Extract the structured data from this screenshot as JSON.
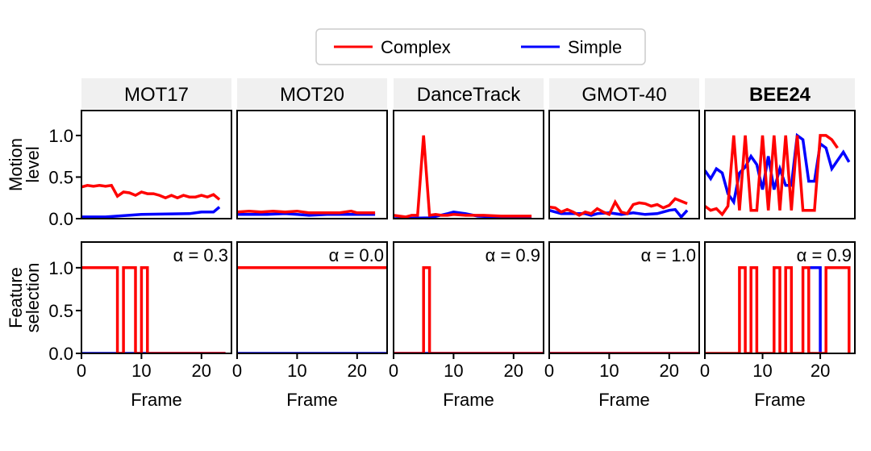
{
  "chart_data": {
    "type": "line",
    "legend": {
      "placement": "top-center",
      "entries": [
        {
          "label": "Complex",
          "color": "#ff0000"
        },
        {
          "label": "Simple",
          "color": "#0000ff"
        }
      ]
    },
    "panel_titles": [
      "MOT17",
      "MOT20",
      "DanceTrack",
      "GMOT-40",
      "BEE24"
    ],
    "bold_title_index": 4,
    "row_ylabels": [
      [
        "Motion",
        "level"
      ],
      [
        "Feature",
        "selection"
      ]
    ],
    "xlabel": "Frame",
    "x_ticks": [
      0,
      10,
      20
    ],
    "y_ticks": [
      0.0,
      0.5,
      1.0
    ],
    "y_tick_labels": [
      "0.0",
      "0.5",
      "1.0"
    ],
    "ylim": [
      0,
      1.3
    ],
    "xlims": [
      [
        0,
        25
      ],
      [
        0,
        25
      ],
      [
        0,
        25
      ],
      [
        0,
        25
      ],
      [
        0,
        26
      ]
    ],
    "alpha_labels": [
      "α = 0.3",
      "α = 0.0",
      "α = 0.9",
      "α = 1.0",
      "α = 0.9"
    ],
    "motion": [
      {
        "complex": [
          [
            0,
            0.38
          ],
          [
            1,
            0.4
          ],
          [
            2,
            0.39
          ],
          [
            3,
            0.4
          ],
          [
            4,
            0.39
          ],
          [
            5,
            0.4
          ],
          [
            6,
            0.27
          ],
          [
            7,
            0.32
          ],
          [
            8,
            0.31
          ],
          [
            9,
            0.28
          ],
          [
            10,
            0.32
          ],
          [
            11,
            0.3
          ],
          [
            12,
            0.3
          ],
          [
            13,
            0.28
          ],
          [
            14,
            0.25
          ],
          [
            15,
            0.28
          ],
          [
            16,
            0.25
          ],
          [
            17,
            0.28
          ],
          [
            18,
            0.26
          ],
          [
            19,
            0.26
          ],
          [
            20,
            0.28
          ],
          [
            21,
            0.26
          ],
          [
            22,
            0.29
          ],
          [
            23,
            0.23
          ]
        ],
        "simple": [
          [
            0,
            0.02
          ],
          [
            4,
            0.02
          ],
          [
            10,
            0.05
          ],
          [
            18,
            0.06
          ],
          [
            20,
            0.08
          ],
          [
            22,
            0.08
          ],
          [
            23,
            0.14
          ]
        ]
      },
      {
        "complex": [
          [
            0,
            0.08
          ],
          [
            2,
            0.09
          ],
          [
            4,
            0.08
          ],
          [
            6,
            0.09
          ],
          [
            8,
            0.08
          ],
          [
            10,
            0.09
          ],
          [
            12,
            0.07
          ],
          [
            14,
            0.07
          ],
          [
            17,
            0.07
          ],
          [
            19,
            0.09
          ],
          [
            20,
            0.07
          ],
          [
            23,
            0.07
          ]
        ],
        "simple": [
          [
            0,
            0.05
          ],
          [
            5,
            0.05
          ],
          [
            8,
            0.06
          ],
          [
            10,
            0.05
          ],
          [
            12,
            0.04
          ],
          [
            15,
            0.05
          ],
          [
            20,
            0.05
          ],
          [
            23,
            0.05
          ]
        ]
      },
      {
        "complex": [
          [
            0,
            0.04
          ],
          [
            1,
            0.03
          ],
          [
            2,
            0.02
          ],
          [
            3,
            0.04
          ],
          [
            4,
            0.04
          ],
          [
            5,
            1.0
          ],
          [
            6,
            0.04
          ],
          [
            7,
            0.05
          ],
          [
            8,
            0.04
          ],
          [
            9,
            0.04
          ],
          [
            10,
            0.05
          ],
          [
            12,
            0.04
          ],
          [
            15,
            0.04
          ],
          [
            18,
            0.03
          ],
          [
            20,
            0.03
          ],
          [
            23,
            0.03
          ]
        ],
        "simple": [
          [
            0,
            0.0
          ],
          [
            6,
            0.01
          ],
          [
            9,
            0.06
          ],
          [
            10,
            0.08
          ],
          [
            12,
            0.06
          ],
          [
            14,
            0.03
          ],
          [
            17,
            0.02
          ],
          [
            20,
            0.01
          ],
          [
            23,
            0.01
          ]
        ]
      },
      {
        "complex": [
          [
            0,
            0.14
          ],
          [
            1,
            0.13
          ],
          [
            2,
            0.08
          ],
          [
            3,
            0.11
          ],
          [
            4,
            0.08
          ],
          [
            5,
            0.04
          ],
          [
            6,
            0.08
          ],
          [
            7,
            0.06
          ],
          [
            8,
            0.12
          ],
          [
            9,
            0.08
          ],
          [
            10,
            0.05
          ],
          [
            11,
            0.2
          ],
          [
            12,
            0.08
          ],
          [
            13,
            0.06
          ],
          [
            14,
            0.17
          ],
          [
            15,
            0.19
          ],
          [
            16,
            0.18
          ],
          [
            17,
            0.15
          ],
          [
            18,
            0.17
          ],
          [
            19,
            0.13
          ],
          [
            20,
            0.16
          ],
          [
            21,
            0.24
          ],
          [
            22,
            0.21
          ],
          [
            23,
            0.18
          ]
        ],
        "simple": [
          [
            0,
            0.1
          ],
          [
            2,
            0.06
          ],
          [
            4,
            0.06
          ],
          [
            6,
            0.06
          ],
          [
            7,
            0.04
          ],
          [
            8,
            0.06
          ],
          [
            10,
            0.07
          ],
          [
            12,
            0.05
          ],
          [
            14,
            0.07
          ],
          [
            16,
            0.05
          ],
          [
            18,
            0.06
          ],
          [
            20,
            0.1
          ],
          [
            21,
            0.11
          ],
          [
            22,
            0.02
          ],
          [
            23,
            0.1
          ]
        ]
      },
      {
        "complex": [
          [
            0,
            0.15
          ],
          [
            1,
            0.1
          ],
          [
            2,
            0.12
          ],
          [
            3,
            0.05
          ],
          [
            4,
            0.15
          ],
          [
            5,
            1.0
          ],
          [
            6,
            0.1
          ],
          [
            7,
            1.0
          ],
          [
            8,
            0.1
          ],
          [
            9,
            0.1
          ],
          [
            10,
            1.0
          ],
          [
            11,
            0.1
          ],
          [
            12,
            1.0
          ],
          [
            13,
            0.1
          ],
          [
            14,
            1.0
          ],
          [
            15,
            0.1
          ],
          [
            16,
            1.0
          ],
          [
            17,
            0.1
          ],
          [
            18,
            0.1
          ],
          [
            19,
            0.1
          ],
          [
            20,
            1.0
          ],
          [
            21,
            1.0
          ],
          [
            22,
            0.95
          ],
          [
            23,
            0.85
          ]
        ],
        "simple": [
          [
            0,
            0.58
          ],
          [
            1,
            0.48
          ],
          [
            2,
            0.6
          ],
          [
            3,
            0.55
          ],
          [
            4,
            0.3
          ],
          [
            5,
            0.2
          ],
          [
            6,
            0.55
          ],
          [
            7,
            0.62
          ],
          [
            8,
            0.75
          ],
          [
            9,
            0.65
          ],
          [
            10,
            0.35
          ],
          [
            11,
            0.75
          ],
          [
            12,
            0.35
          ],
          [
            13,
            0.6
          ],
          [
            14,
            0.4
          ],
          [
            15,
            0.4
          ],
          [
            16,
            1.0
          ],
          [
            17,
            0.95
          ],
          [
            18,
            0.45
          ],
          [
            19,
            0.45
          ],
          [
            20,
            0.9
          ],
          [
            21,
            0.85
          ],
          [
            22,
            0.6
          ],
          [
            23,
            0.7
          ],
          [
            24,
            0.8
          ],
          [
            25,
            0.68
          ]
        ]
      }
    ],
    "selection": [
      {
        "complex": [
          [
            0,
            1
          ],
          [
            6,
            1
          ],
          [
            6,
            0
          ],
          [
            7,
            0
          ],
          [
            7,
            1
          ],
          [
            9,
            1
          ],
          [
            9,
            0
          ],
          [
            10,
            0
          ],
          [
            10,
            1
          ],
          [
            11,
            1
          ],
          [
            11,
            0
          ],
          [
            24,
            0
          ]
        ],
        "simple": [
          [
            0,
            0
          ],
          [
            24,
            0
          ]
        ]
      },
      {
        "complex": [
          [
            0,
            1
          ],
          [
            25,
            1
          ]
        ],
        "simple": [
          [
            0,
            0
          ],
          [
            25,
            0
          ]
        ]
      },
      {
        "complex": [
          [
            0,
            0
          ],
          [
            5,
            0
          ],
          [
            5,
            1
          ],
          [
            6,
            1
          ],
          [
            6,
            0
          ],
          [
            25,
            0
          ]
        ],
        "simple": [
          [
            0,
            0
          ],
          [
            25,
            0
          ]
        ]
      },
      {
        "complex": [
          [
            0,
            0
          ],
          [
            25,
            0
          ]
        ],
        "simple": [
          [
            0,
            0
          ],
          [
            25,
            0
          ]
        ]
      },
      {
        "complex": [
          [
            0,
            0
          ],
          [
            6,
            0
          ],
          [
            6,
            1
          ],
          [
            7,
            1
          ],
          [
            7,
            0
          ],
          [
            8,
            0
          ],
          [
            8,
            1
          ],
          [
            9,
            1
          ],
          [
            9,
            0
          ],
          [
            12,
            0
          ],
          [
            12,
            1
          ],
          [
            13,
            1
          ],
          [
            13,
            0
          ],
          [
            14,
            0
          ],
          [
            14,
            1
          ],
          [
            15,
            1
          ],
          [
            15,
            0
          ],
          [
            17,
            0
          ],
          [
            17,
            1
          ],
          [
            18,
            1
          ],
          [
            18,
            0
          ],
          [
            21,
            0
          ],
          [
            21,
            1
          ],
          [
            25,
            1
          ],
          [
            25,
            0
          ]
        ],
        "simple": [
          [
            18,
            1
          ],
          [
            20,
            1
          ],
          [
            20,
            0
          ]
        ]
      }
    ]
  }
}
